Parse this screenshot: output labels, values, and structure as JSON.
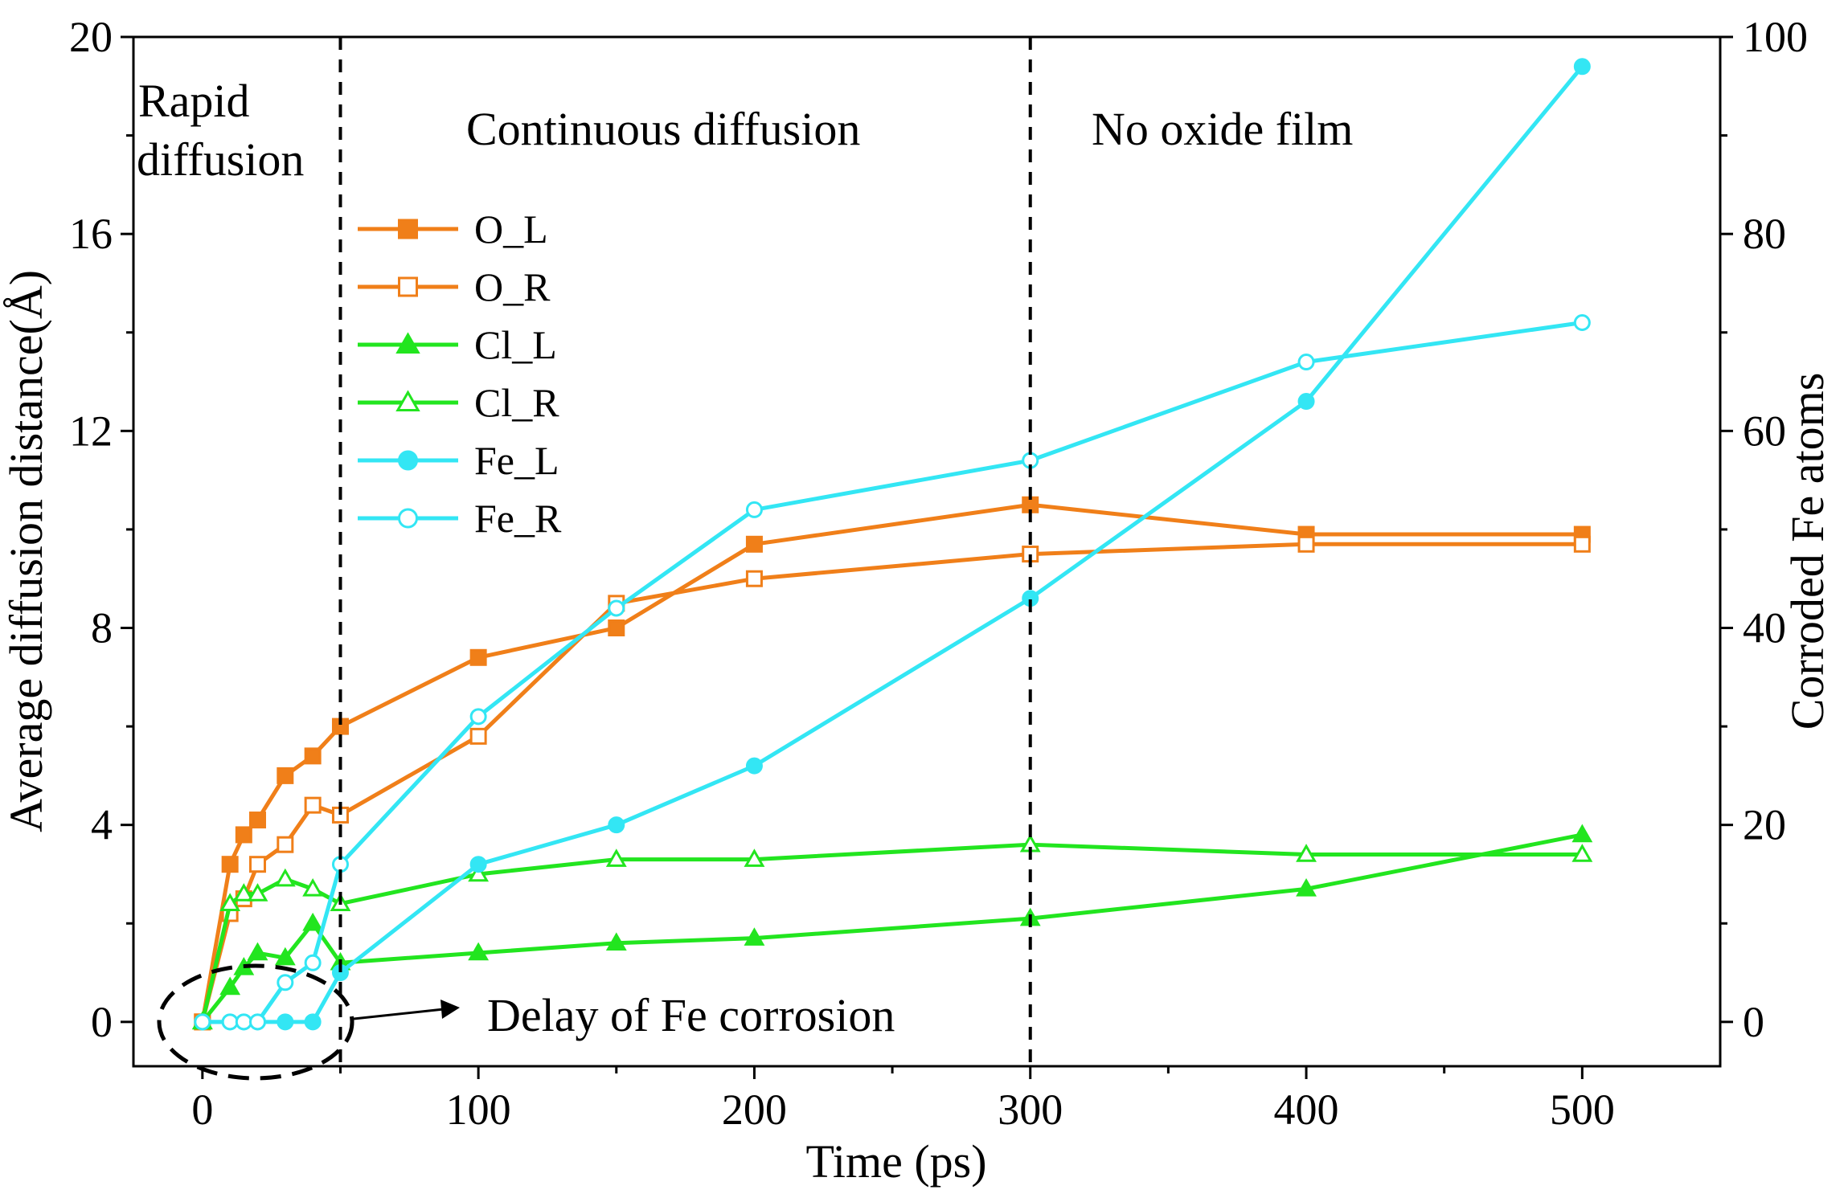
{
  "chart_data": {
    "type": "line",
    "xlabel": "Time (ps)",
    "ylabel": "Average diffusion distance(Å)",
    "y2label": "Corroded Fe atoms",
    "xlim": [
      -25,
      550
    ],
    "ylim": [
      -0.9,
      20
    ],
    "y2lim": [
      -4.5,
      100
    ],
    "xticks": [
      0,
      100,
      200,
      300,
      400,
      500
    ],
    "xticks_minor": [
      50,
      150,
      250,
      350,
      450
    ],
    "yticks": [
      0,
      4,
      8,
      12,
      16,
      20
    ],
    "y2ticks": [
      0,
      20,
      40,
      60,
      80,
      100
    ],
    "grid": false,
    "legend_position": "upper-left",
    "vlines": [
      50,
      300
    ],
    "phase_labels": [
      "Rapid diffusion",
      "Continuous diffusion",
      "No oxide film"
    ],
    "annotation": "Delay of Fe corrosion",
    "series": [
      {
        "name": "O_L",
        "axis": "left",
        "color": "#F07F19",
        "marker": "square",
        "filled": true,
        "x": [
          0,
          10,
          15,
          20,
          30,
          40,
          50,
          100,
          150,
          200,
          300,
          400,
          500
        ],
        "y": [
          0,
          3.2,
          3.8,
          4.1,
          5.0,
          5.4,
          6.0,
          7.4,
          8.0,
          9.7,
          10.5,
          9.9,
          9.9
        ]
      },
      {
        "name": "O_R",
        "axis": "left",
        "color": "#F07F19",
        "marker": "square",
        "filled": false,
        "x": [
          0,
          10,
          15,
          20,
          30,
          40,
          50,
          100,
          150,
          200,
          300,
          400,
          500
        ],
        "y": [
          0,
          2.2,
          2.5,
          3.2,
          3.6,
          4.4,
          4.2,
          5.8,
          8.5,
          9.0,
          9.5,
          9.7,
          9.7
        ]
      },
      {
        "name": "Cl_L",
        "axis": "left",
        "color": "#22E51F",
        "marker": "triangle",
        "filled": true,
        "x": [
          0,
          10,
          15,
          20,
          30,
          40,
          50,
          100,
          150,
          200,
          300,
          400,
          500
        ],
        "y": [
          0,
          0.7,
          1.1,
          1.4,
          1.3,
          2.0,
          1.2,
          1.4,
          1.6,
          1.7,
          2.1,
          2.7,
          3.8
        ]
      },
      {
        "name": "Cl_R",
        "axis": "left",
        "color": "#22E51F",
        "marker": "triangle",
        "filled": false,
        "x": [
          0,
          10,
          15,
          20,
          30,
          40,
          50,
          100,
          150,
          200,
          300,
          400,
          500
        ],
        "y": [
          0,
          2.4,
          2.6,
          2.6,
          2.9,
          2.7,
          2.4,
          3.0,
          3.3,
          3.3,
          3.6,
          3.4,
          3.4
        ]
      },
      {
        "name": "Fe_L",
        "axis": "right",
        "color": "#33E6F4",
        "marker": "circle",
        "filled": true,
        "x": [
          0,
          10,
          15,
          20,
          30,
          40,
          50,
          100,
          150,
          200,
          300,
          400,
          500
        ],
        "y": [
          0,
          0,
          0,
          0,
          0,
          0,
          5,
          16,
          20,
          26,
          43,
          63,
          97
        ]
      },
      {
        "name": "Fe_R",
        "axis": "right",
        "color": "#33E6F4",
        "marker": "circle",
        "filled": false,
        "x": [
          0,
          10,
          15,
          20,
          30,
          40,
          50,
          100,
          150,
          200,
          300,
          400,
          500
        ],
        "y": [
          0,
          0,
          0,
          0,
          4,
          6,
          16,
          31,
          42,
          52,
          57,
          67,
          71
        ]
      }
    ]
  }
}
